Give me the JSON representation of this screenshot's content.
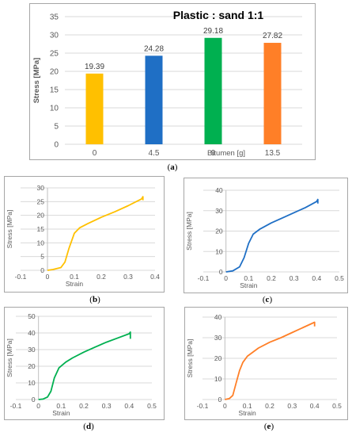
{
  "captions": {
    "a": {
      "open": "(",
      "letter": "a",
      "close": ")"
    },
    "b": {
      "open": "(",
      "letter": "b",
      "close": ")"
    },
    "c": {
      "open": "(",
      "letter": "c",
      "close": ")"
    },
    "d": {
      "open": "(",
      "letter": "d",
      "close": ")"
    },
    "e": {
      "open": "(",
      "letter": "e",
      "close": ")"
    }
  },
  "chart_data": [
    {
      "id": "a",
      "type": "bar",
      "title": "Plastic : sand  1:1",
      "xlabel": "Bitumen [g]",
      "ylabel": "Stress [MPa]",
      "categories": [
        "0",
        "4.5",
        "9",
        "13.5"
      ],
      "values": [
        19.39,
        24.28,
        29.18,
        27.82
      ],
      "data_labels": [
        "19.39",
        "24.28",
        "29.18",
        "27.82"
      ],
      "colors": [
        "#FFC000",
        "#1F6FC5",
        "#00B050",
        "#FF7F27"
      ],
      "ylim": [
        0,
        35
      ],
      "yticks": [
        "0",
        "5",
        "10",
        "15",
        "20",
        "25",
        "30",
        "35"
      ],
      "grid": true
    },
    {
      "id": "b",
      "type": "line",
      "xlabel": "Strain",
      "ylabel": "Stress [MPa]",
      "xlim": [
        -0.1,
        0.4
      ],
      "ylim": [
        0,
        30
      ],
      "xticks": [
        "-0.1",
        "0",
        "0.1",
        "0.2",
        "0.3",
        "0.4"
      ],
      "yticks": [
        "0",
        "5",
        "10",
        "15",
        "20",
        "25",
        "30"
      ],
      "color": "#FFC000",
      "grid": true,
      "x": [
        0,
        0.02,
        0.05,
        0.065,
        0.08,
        0.1,
        0.12,
        0.15,
        0.2,
        0.25,
        0.3,
        0.35,
        0.355,
        0.355
      ],
      "y": [
        0,
        0.3,
        1,
        3,
        8,
        13.5,
        15.5,
        17,
        19.3,
        21.3,
        23.5,
        26,
        26.8,
        25.5
      ]
    },
    {
      "id": "c",
      "type": "line",
      "xlabel": "Strain",
      "ylabel": "Stress [MPa]",
      "xlim": [
        -0.1,
        0.5
      ],
      "ylim": [
        0,
        40
      ],
      "xticks": [
        "-0.1",
        "0",
        "0.1",
        "0.2",
        "0.3",
        "0.4",
        "0.5"
      ],
      "yticks": [
        "0",
        "10",
        "20",
        "30",
        "40"
      ],
      "color": "#1F6FC5",
      "grid": true,
      "x": [
        0,
        0.03,
        0.06,
        0.08,
        0.1,
        0.12,
        0.15,
        0.2,
        0.25,
        0.3,
        0.35,
        0.4,
        0.405,
        0.405
      ],
      "y": [
        0,
        0.5,
        2.5,
        7,
        14,
        18.5,
        21,
        24,
        26.5,
        29,
        31.5,
        34.5,
        35.5,
        33.5
      ]
    },
    {
      "id": "d",
      "type": "line",
      "xlabel": "Strain",
      "ylabel": "Stress [MPa]",
      "xlim": [
        -0.1,
        0.5
      ],
      "ylim": [
        0,
        50
      ],
      "xticks": [
        "-0.1",
        "0",
        "0.1",
        "0.2",
        "0.3",
        "0.4",
        "0.5"
      ],
      "yticks": [
        "0",
        "10",
        "20",
        "30",
        "40",
        "50"
      ],
      "color": "#00B050",
      "grid": true,
      "x": [
        0,
        0.02,
        0.04,
        0.055,
        0.07,
        0.09,
        0.12,
        0.15,
        0.2,
        0.25,
        0.3,
        0.35,
        0.4,
        0.405,
        0.405
      ],
      "y": [
        0,
        0.3,
        1.5,
        5,
        13,
        19,
        22.5,
        25,
        28.5,
        31.5,
        34.5,
        37,
        39.5,
        40.5,
        36.5
      ]
    },
    {
      "id": "e",
      "type": "line",
      "xlabel": "Strain",
      "ylabel": "Stress [MPa]",
      "xlim": [
        -0.1,
        0.5
      ],
      "ylim": [
        0,
        40
      ],
      "xticks": [
        "-0.1",
        "0",
        "0.1",
        "0.2",
        "0.3",
        "0.4",
        "0.5"
      ],
      "yticks": [
        "0",
        "10",
        "20",
        "30",
        "40"
      ],
      "color": "#FF7F27",
      "grid": true,
      "x": [
        0,
        0.02,
        0.035,
        0.05,
        0.065,
        0.08,
        0.1,
        0.15,
        0.2,
        0.25,
        0.3,
        0.35,
        0.4,
        0.4
      ],
      "y": [
        0,
        0.5,
        2,
        8,
        14,
        18,
        21,
        25,
        27.8,
        30,
        32.5,
        35,
        37.5,
        35.5
      ]
    }
  ]
}
